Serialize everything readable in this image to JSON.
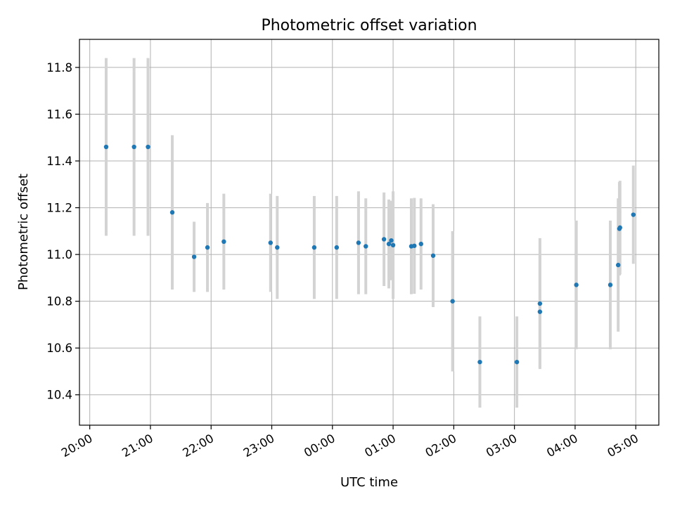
{
  "chart_data": {
    "type": "scatter",
    "title": "Photometric offset variation",
    "xlabel": "UTC time",
    "ylabel": "Photometric offset",
    "x_tick_labels": [
      "20:00",
      "21:00",
      "22:00",
      "23:00",
      "00:00",
      "01:00",
      "02:00",
      "03:00",
      "04:00",
      "05:00"
    ],
    "y_tick_labels": [
      "10.4",
      "10.6",
      "10.8",
      "11.0",
      "11.2",
      "11.4",
      "11.6",
      "11.8"
    ],
    "x_unit": "hours since 20:00 UTC",
    "xlim": [
      -0.17,
      9.38
    ],
    "ylim": [
      10.27,
      11.92
    ],
    "grid": true,
    "colors": {
      "points": "#1f77b4",
      "errorbars": "#d3d3d3"
    },
    "series": [
      {
        "x": [
          0.27,
          0.73,
          0.96,
          1.36,
          1.72,
          1.94,
          2.21,
          2.98,
          3.09,
          3.7,
          4.07,
          4.43,
          4.55,
          4.85,
          4.93,
          4.97,
          5.0,
          5.3,
          5.35,
          5.46,
          5.66,
          5.98,
          6.43,
          7.04,
          7.42,
          7.42,
          8.02,
          8.58,
          8.71,
          8.73,
          8.74,
          8.96
        ],
        "y": [
          11.46,
          11.46,
          11.46,
          11.18,
          10.99,
          11.03,
          11.055,
          11.05,
          11.03,
          11.03,
          11.03,
          11.05,
          11.035,
          11.065,
          11.045,
          11.06,
          11.04,
          11.035,
          11.037,
          11.045,
          10.995,
          10.8,
          10.54,
          10.54,
          10.79,
          10.755,
          10.87,
          10.87,
          10.955,
          11.11,
          11.115,
          11.17
        ],
        "yerr": [
          0.38,
          0.38,
          0.38,
          0.33,
          0.15,
          0.19,
          0.205,
          0.21,
          0.22,
          0.22,
          0.22,
          0.22,
          0.205,
          0.2,
          0.19,
          0.17,
          0.23,
          0.205,
          0.205,
          0.195,
          0.22,
          0.3,
          0.195,
          0.195,
          0.28,
          0.24,
          0.275,
          0.275,
          0.285,
          0.2,
          0.2,
          0.21
        ]
      }
    ]
  }
}
